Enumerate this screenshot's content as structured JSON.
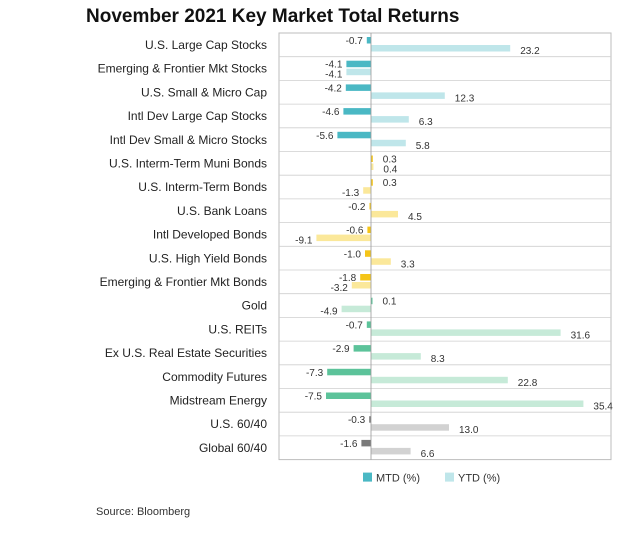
{
  "title": "November 2021 Key Market Total Returns",
  "source": "Source: Bloomberg",
  "chart_data": {
    "type": "bar",
    "orientation": "horizontal",
    "title": "November 2021 Key Market Total Returns",
    "categories": [
      "U.S. Large Cap Stocks",
      "Emerging & Frontier Mkt Stocks",
      "U.S. Small & Micro Cap",
      "Intl Dev Large Cap Stocks",
      "Intl Dev Small & Micro Stocks",
      "U.S. Interm-Term Muni Bonds",
      "U.S. Interm-Term Bonds",
      "U.S. Bank Loans",
      "Intl Developed Bonds",
      "U.S. High Yield Bonds",
      "Emerging & Frontier Mkt Bonds",
      "Gold",
      "U.S. REITs",
      "Ex U.S. Real Estate Securities",
      "Commodity Futures",
      "Midstream Energy",
      "U.S. 60/40",
      "Global 60/40"
    ],
    "series": [
      {
        "name": "MTD (%)",
        "values": [
          -0.7,
          -4.1,
          -4.2,
          -4.6,
          -5.6,
          0.3,
          0.3,
          -0.2,
          -0.6,
          -1.0,
          -1.8,
          0.1,
          -0.7,
          -2.9,
          -7.3,
          -7.5,
          -0.3,
          -1.6
        ]
      },
      {
        "name": "YTD (%)",
        "values": [
          23.2,
          -4.1,
          12.3,
          6.3,
          5.8,
          0.4,
          -1.3,
          4.5,
          -9.1,
          3.3,
          -3.2,
          -4.9,
          31.6,
          8.3,
          22.8,
          35.4,
          13.0,
          6.6
        ]
      }
    ],
    "value_labels": {
      "mtd": [
        "-0.7",
        "-4.1",
        "-4.2",
        "-4.6",
        "-5.6",
        "0.3",
        "0.3",
        "-0.2",
        "-0.6",
        "-1.0",
        "-1.8",
        "0.1",
        "-0.7",
        "-2.9",
        "-7.3",
        "-7.5",
        "-0.3",
        "-1.6"
      ],
      "ytd": [
        "23.2",
        "-4.1",
        "12.3",
        "6.3",
        "5.8",
        "0.4",
        "-1.3",
        "4.5",
        "-9.1",
        "3.3",
        "-3.2",
        "-4.9",
        "31.6",
        "8.3",
        "22.8",
        "35.4",
        "13.0",
        "6.6"
      ]
    },
    "groups": [
      "equity",
      "equity",
      "equity",
      "equity",
      "equity",
      "bond",
      "bond",
      "bond",
      "bond",
      "bond",
      "bond",
      "real",
      "real",
      "real",
      "real",
      "real",
      "mixed",
      "mixed"
    ],
    "colors": {
      "equity_mtd": "#4ab8c4",
      "equity_ytd": "#bfe6ea",
      "bond_mtd": "#f5c518",
      "bond_ytd": "#fbe89a",
      "real_mtd": "#5cc39a",
      "real_ytd": "#c6ead8",
      "mixed_mtd": "#7a7a7a",
      "mixed_ytd": "#d2d2d2"
    },
    "legend": {
      "placement": "bottom",
      "items": [
        {
          "label": "MTD (%)",
          "color": "#4ab8c4"
        },
        {
          "label": "YTD (%)",
          "color": "#bfe6ea"
        }
      ]
    },
    "xlim": [
      -12,
      36
    ],
    "grid": false,
    "row_separators": true
  }
}
